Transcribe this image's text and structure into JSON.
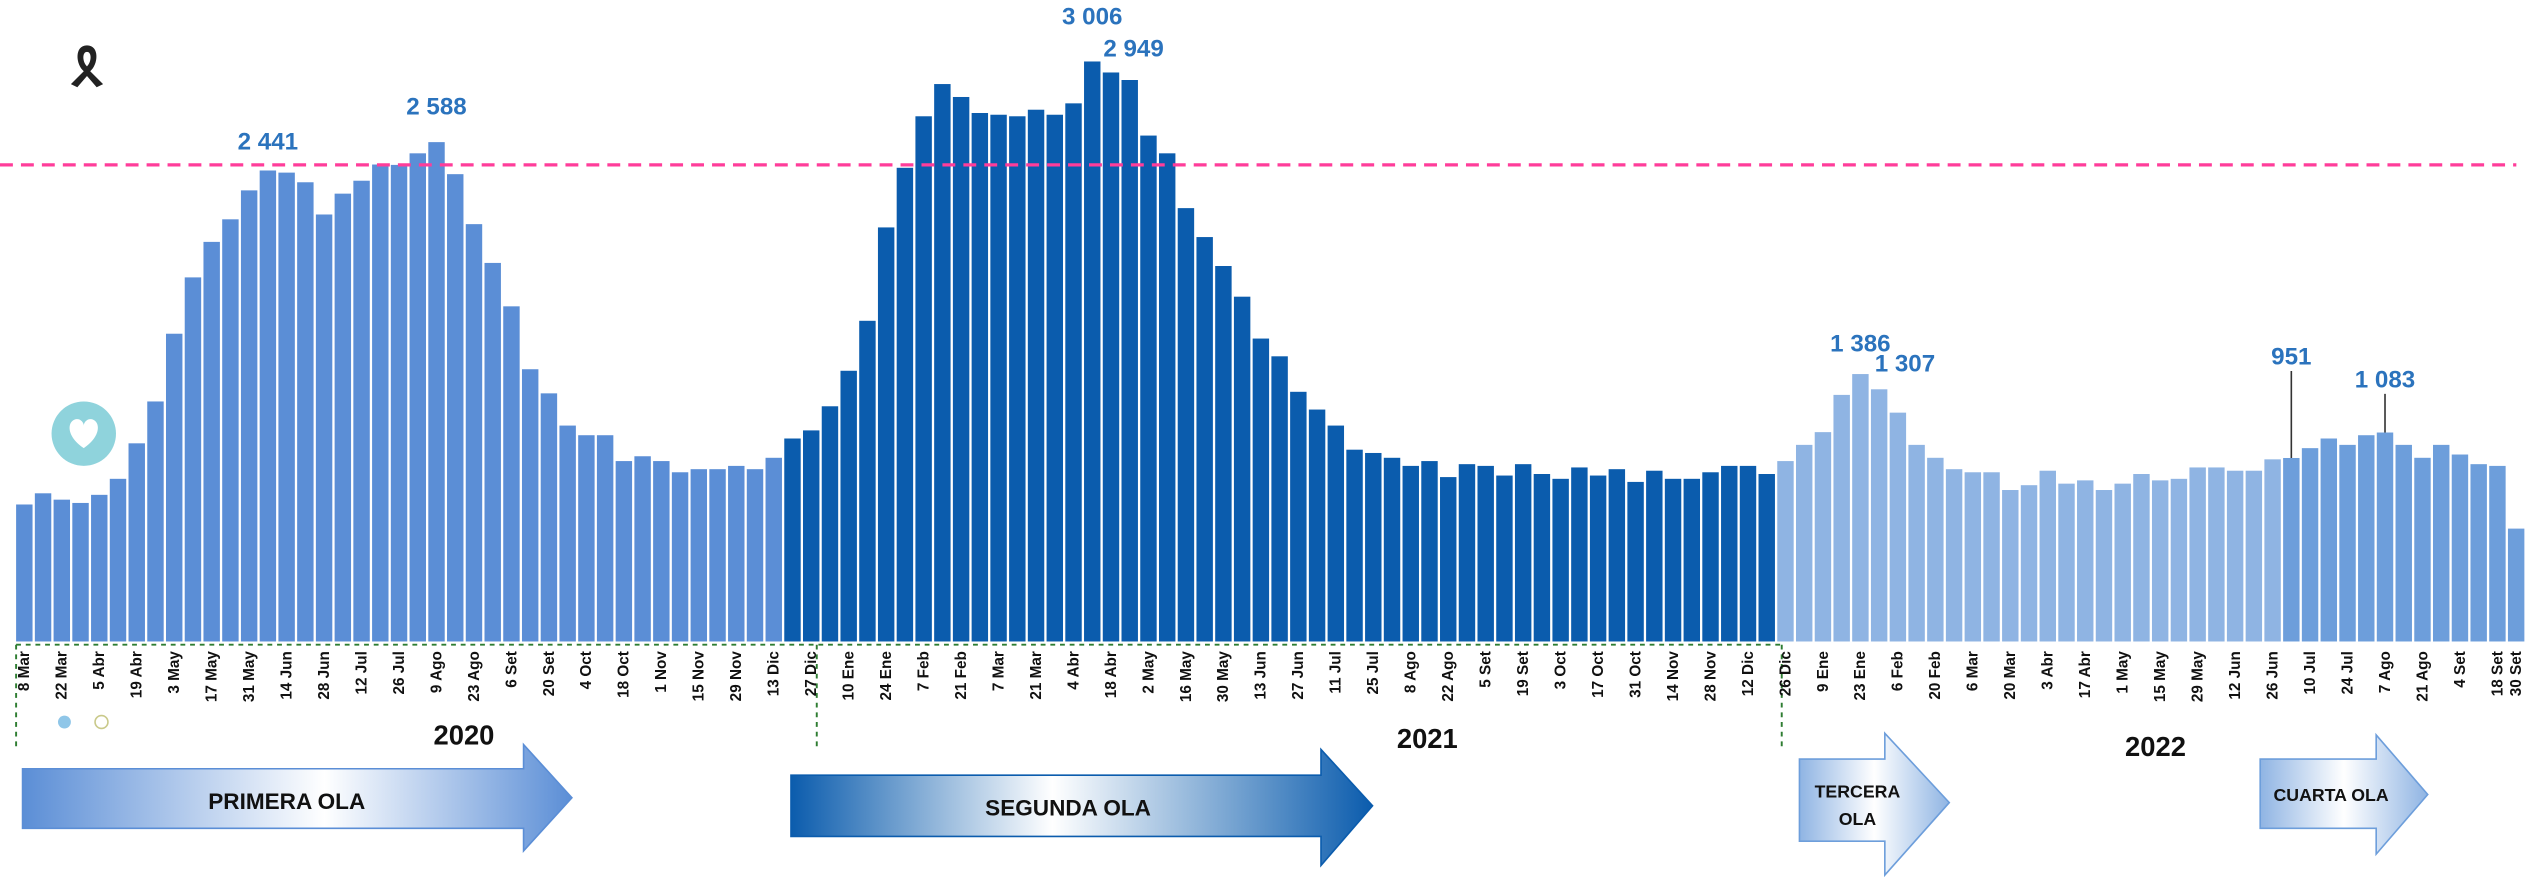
{
  "chart_data": {
    "type": "bar",
    "categories": [
      "8 Mar",
      null,
      "22 Mar",
      null,
      "5 Abr",
      null,
      "19 Abr",
      null,
      "3 May",
      null,
      "17 May",
      null,
      "31 May",
      null,
      "14 Jun",
      null,
      "28 Jun",
      null,
      "12 Jul",
      null,
      "26 Jul",
      null,
      "9 Ago",
      null,
      "23 Ago",
      null,
      "6 Set",
      null,
      "20 Set",
      null,
      "4 Oct",
      null,
      "18 Oct",
      null,
      "1 Nov",
      null,
      "15 Nov",
      null,
      "29 Nov",
      null,
      "13 Dic",
      null,
      "27 Dic",
      null,
      "10 Ene",
      null,
      "24 Ene",
      null,
      "7 Feb",
      null,
      "21 Feb",
      null,
      "7 Mar",
      null,
      "21 Mar",
      null,
      "4 Abr",
      null,
      "18 Abr",
      null,
      "2 May",
      null,
      "16 May",
      null,
      "30 May",
      null,
      "13 Jun",
      null,
      "27 Jun",
      null,
      "11 Jul",
      null,
      "25 Jul",
      null,
      "8 Ago",
      null,
      "22 Ago",
      null,
      "5 Set",
      null,
      "19 Set",
      null,
      "3 Oct",
      null,
      "17 Oct",
      null,
      "31 Oct",
      null,
      "14 Nov",
      null,
      "28 Nov",
      null,
      "12 Dic",
      null,
      "26 Dic",
      null,
      "9 Ene",
      null,
      "23 Ene",
      null,
      "6 Feb",
      null,
      "20 Feb",
      null,
      "6 Mar",
      null,
      "20 Mar",
      null,
      "3 Abr",
      null,
      "17 Abr",
      null,
      "1 May",
      null,
      "15 May",
      null,
      "29 May",
      null,
      "12 Jun",
      null,
      "26 Jun",
      null,
      "10 Jul",
      null,
      "24 Jul",
      null,
      "7 Ago",
      null,
      "21 Ago",
      null,
      "4 Set",
      null,
      "18 Set",
      "30 Set"
    ],
    "values": [
      710,
      768,
      735,
      718,
      760,
      843,
      1027,
      1244,
      1595,
      1887,
      2071,
      2188,
      2338,
      2441,
      2430,
      2380,
      2213,
      2321,
      2388,
      2472,
      2470,
      2530,
      2588,
      2422,
      2163,
      1962,
      1737,
      1411,
      1286,
      1119,
      1069,
      1069,
      935,
      960,
      935,
      877,
      893,
      893,
      910,
      893,
      952,
      1052,
      1094,
      1219,
      1403,
      1662,
      2146,
      2455,
      2722,
      2889,
      2822,
      2739,
      2730,
      2722,
      2756,
      2730,
      2789,
      3006,
      2949,
      2910,
      2622,
      2530,
      2246,
      2096,
      1946,
      1787,
      1570,
      1478,
      1294,
      1202,
      1119,
      994,
      977,
      952,
      910,
      935,
      852,
      919,
      910,
      860,
      919,
      868,
      843,
      902,
      860,
      893,
      827,
      885,
      843,
      843,
      877,
      910,
      910,
      868,
      935,
      1019,
      1085,
      1278,
      1386,
      1307,
      1186,
      1019,
      952,
      893,
      877,
      877,
      785,
      810,
      885,
      818,
      835,
      785,
      818,
      868,
      835,
      843,
      902,
      902,
      885,
      885,
      944,
      951,
      1002,
      1052,
      1019,
      1069,
      1083,
      1019,
      952,
      1019,
      969,
      919,
      910,
      585
    ],
    "value_labels": [
      null,
      null,
      null,
      null,
      null,
      null,
      null,
      null,
      null,
      null,
      null,
      null,
      null,
      "2 441",
      null,
      null,
      null,
      null,
      null,
      null,
      null,
      null,
      "2 588",
      null,
      null,
      null,
      null,
      null,
      null,
      null,
      null,
      null,
      null,
      null,
      null,
      null,
      null,
      null,
      null,
      null,
      null,
      null,
      null,
      null,
      null,
      null,
      null,
      null,
      null,
      null,
      null,
      null,
      null,
      null,
      null,
      null,
      null,
      "3 006",
      "2 949",
      null,
      null,
      null,
      null,
      null,
      null,
      null,
      null,
      null,
      null,
      null,
      null,
      null,
      null,
      null,
      null,
      null,
      null,
      null,
      null,
      null,
      null,
      null,
      null,
      null,
      null,
      null,
      null,
      null,
      null,
      null,
      null,
      null,
      null,
      null,
      null,
      null,
      null,
      null,
      "1 386",
      "1 307",
      null,
      null,
      null,
      null,
      null,
      null,
      null,
      null,
      null,
      null,
      null,
      null,
      null,
      null,
      null,
      null,
      null,
      null,
      null,
      null,
      null,
      "951",
      null,
      null,
      null,
      null,
      "1 083",
      null,
      null,
      null,
      null,
      null,
      null,
      null
    ],
    "colors": [
      "#5b8ed6",
      "#5b8ed6",
      "#5b8ed6",
      "#5b8ed6",
      "#5b8ed6",
      "#5b8ed6",
      "#5b8ed6",
      "#5b8ed6",
      "#5b8ed6",
      "#5b8ed6",
      "#5b8ed6",
      "#5b8ed6",
      "#5b8ed6",
      "#5b8ed6",
      "#5b8ed6",
      "#5b8ed6",
      "#5b8ed6",
      "#5b8ed6",
      "#5b8ed6",
      "#5b8ed6",
      "#5b8ed6",
      "#5b8ed6",
      "#5b8ed6",
      "#5b8ed6",
      "#5b8ed6",
      "#5b8ed6",
      "#5b8ed6",
      "#5b8ed6",
      "#5b8ed6",
      "#5b8ed6",
      "#5b8ed6",
      "#5b8ed6",
      "#5b8ed6",
      "#5b8ed6",
      "#5b8ed6",
      "#5b8ed6",
      "#5b8ed6",
      "#5b8ed6",
      "#5b8ed6",
      "#5b8ed6",
      "#5b8ed6",
      "#0b5cad",
      "#0b5cad",
      "#0b5cad",
      "#0b5cad",
      "#0b5cad",
      "#0b5cad",
      "#0b5cad",
      "#0b5cad",
      "#0b5cad",
      "#0b5cad",
      "#0b5cad",
      "#0b5cad",
      "#0b5cad",
      "#0b5cad",
      "#0b5cad",
      "#0b5cad",
      "#0b5cad",
      "#0b5cad",
      "#0b5cad",
      "#0b5cad",
      "#0b5cad",
      "#0b5cad",
      "#0b5cad",
      "#0b5cad",
      "#0b5cad",
      "#0b5cad",
      "#0b5cad",
      "#0b5cad",
      "#0b5cad",
      "#0b5cad",
      "#0b5cad",
      "#0b5cad",
      "#0b5cad",
      "#0b5cad",
      "#0b5cad",
      "#0b5cad",
      "#0b5cad",
      "#0b5cad",
      "#0b5cad",
      "#0b5cad",
      "#0b5cad",
      "#0b5cad",
      "#0b5cad",
      "#0b5cad",
      "#0b5cad",
      "#0b5cad",
      "#0b5cad",
      "#0b5cad",
      "#0b5cad",
      "#0b5cad",
      "#0b5cad",
      "#0b5cad",
      "#0b5cad",
      "#8fb4e3",
      "#8fb4e3",
      "#8fb4e3",
      "#8fb4e3",
      "#8fb4e3",
      "#8fb4e3",
      "#8fb4e3",
      "#8fb4e3",
      "#8fb4e3",
      "#8fb4e3",
      "#8fb4e3",
      "#8fb4e3",
      "#8fb4e3",
      "#8fb4e3",
      "#8fb4e3",
      "#8fb4e3",
      "#8fb4e3",
      "#8fb4e3",
      "#8fb4e3",
      "#8fb4e3",
      "#8fb4e3",
      "#8fb4e3",
      "#8fb4e3",
      "#8fb4e3",
      "#8fb4e3",
      "#8fb4e3",
      "#8fb4e3",
      "#6d9edb",
      "#6d9edb",
      "#6d9edb",
      "#6d9edb",
      "#6d9edb",
      "#6d9edb",
      "#6d9edb",
      "#6d9edb",
      "#6d9edb",
      "#6d9edb",
      "#6d9edb",
      "#6d9edb",
      "#6d9edb"
    ],
    "ylim": [
      0,
      3323
    ],
    "reference_line": 2470,
    "reference_color": "#ff3d9a",
    "year_labels": [
      "2020",
      "2021",
      "2022"
    ],
    "waves": [
      {
        "lines": [
          "PRIMERA OLA"
        ]
      },
      {
        "lines": [
          "SEGUNDA OLA"
        ]
      },
      {
        "lines": [
          "TERCERA",
          "OLA"
        ]
      },
      {
        "lines": [
          "CUARTA OLA"
        ]
      }
    ]
  }
}
